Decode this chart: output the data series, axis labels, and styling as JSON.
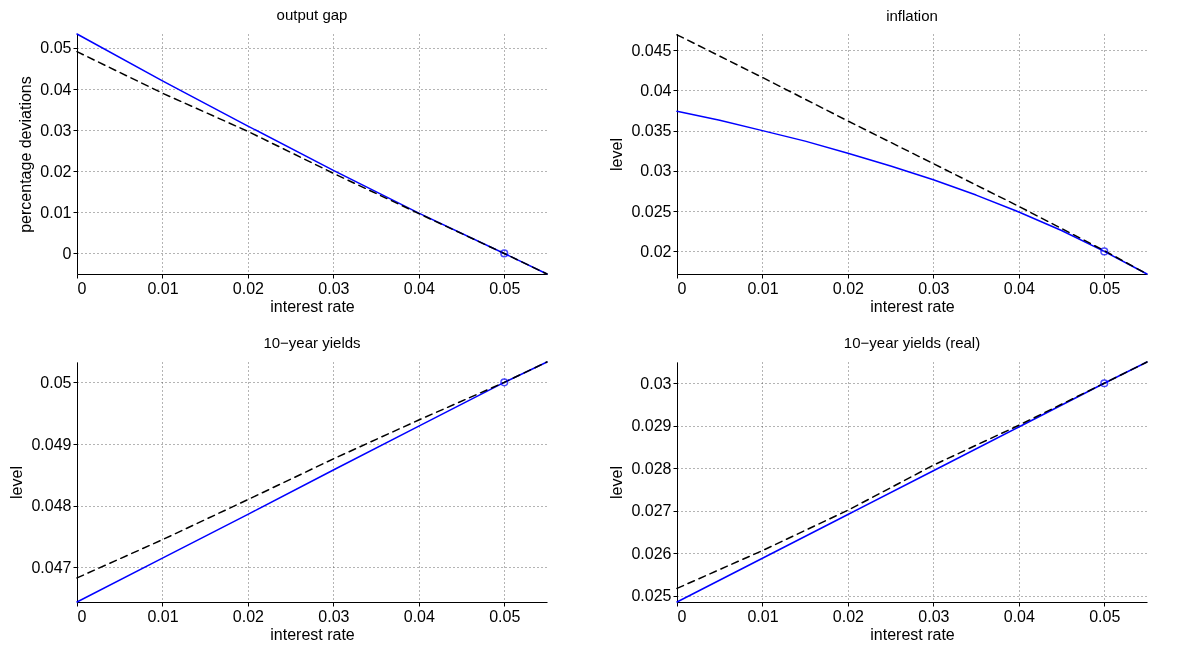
{
  "chart_data": [
    {
      "type": "line",
      "title": "output gap",
      "xlabel": "interest rate",
      "ylabel": "percentage deviations",
      "xlim": [
        0,
        0.055
      ],
      "xticks": [
        0,
        0.01,
        0.02,
        0.03,
        0.04,
        0.05
      ],
      "ylim": [
        -0.005,
        0.0534
      ],
      "yticks": [
        0,
        0.01,
        0.02,
        0.03,
        0.04,
        0.05
      ],
      "grid": true,
      "x": [
        0,
        0.01,
        0.02,
        0.03,
        0.04,
        0.05,
        0.055
      ],
      "series": [
        {
          "color": "#0000ff",
          "line_style": "solid",
          "values": [
            0.0534,
            0.042,
            0.031,
            0.0202,
            0.0098,
            0,
            -0.005
          ]
        },
        {
          "color": "#000000",
          "line_style": "dashed",
          "values": [
            0.0491,
            0.039,
            0.0297,
            0.0195,
            0.0097,
            0,
            -0.005
          ]
        },
        {
          "type": "scatter",
          "marker": "circle",
          "color": "#0000ff",
          "x": [
            0.05
          ],
          "values": [
            0
          ]
        }
      ]
    },
    {
      "type": "line",
      "title": "inflation",
      "xlabel": "interest rate",
      "ylabel": "level",
      "xlim": [
        0,
        0.055
      ],
      "xticks": [
        0,
        0.01,
        0.02,
        0.03,
        0.04,
        0.05
      ],
      "ylim": [
        0.0172,
        0.047
      ],
      "yticks": [
        0.02,
        0.025,
        0.03,
        0.035,
        0.04,
        0.045
      ],
      "grid": true,
      "x": [
        0,
        0.01,
        0.02,
        0.03,
        0.04,
        0.05,
        0.055
      ],
      "series": [
        {
          "color": "#0000ff",
          "line_style": "solid",
          "x": [
            0,
            0.005,
            0.01,
            0.015,
            0.02,
            0.025,
            0.03,
            0.035,
            0.04,
            0.045,
            0.05,
            0.055
          ],
          "values": [
            0.0374,
            0.0363,
            0.035,
            0.0337,
            0.0322,
            0.0306,
            0.0289,
            0.027,
            0.0249,
            0.0226,
            0.02,
            0.0172
          ]
        },
        {
          "color": "#000000",
          "line_style": "dashed",
          "values": [
            0.0469,
            0.0416,
            0.0362,
            0.0309,
            0.0256,
            0.0201,
            0.0172
          ]
        },
        {
          "type": "scatter",
          "marker": "circle",
          "color": "#0000ff",
          "x": [
            0.05
          ],
          "values": [
            0.02
          ]
        }
      ]
    },
    {
      "type": "line",
      "title": "10−year yields",
      "xlabel": "interest rate",
      "ylabel": "level",
      "xlim": [
        0,
        0.055
      ],
      "xticks": [
        0,
        0.01,
        0.02,
        0.03,
        0.04,
        0.05
      ],
      "ylim": [
        0.04644,
        0.05033
      ],
      "yticks": [
        0.047,
        0.048,
        0.049,
        0.05
      ],
      "grid": true,
      "x": [
        0,
        0.01,
        0.02,
        0.03,
        0.04,
        0.05,
        0.055
      ],
      "series": [
        {
          "color": "#0000ff",
          "line_style": "solid",
          "values": [
            0.04644,
            0.04715,
            0.04786,
            0.04858,
            0.04929,
            0.05,
            0.05033
          ]
        },
        {
          "color": "#000000",
          "line_style": "dashed",
          "values": [
            0.04683,
            0.04745,
            0.0481,
            0.04876,
            0.04939,
            0.05,
            0.05033
          ]
        },
        {
          "type": "scatter",
          "marker": "circle",
          "color": "#0000ff",
          "x": [
            0.05
          ],
          "values": [
            0.05
          ]
        }
      ]
    },
    {
      "type": "line",
      "title": "10−year yields (real)",
      "xlabel": "interest rate",
      "ylabel": "level",
      "xlim": [
        0,
        0.055
      ],
      "xticks": [
        0,
        0.01,
        0.02,
        0.03,
        0.04,
        0.05
      ],
      "ylim": [
        0.02485,
        0.0305
      ],
      "yticks": [
        0.025,
        0.026,
        0.027,
        0.028,
        0.029,
        0.03
      ],
      "grid": true,
      "x": [
        0,
        0.01,
        0.02,
        0.03,
        0.04,
        0.05,
        0.055
      ],
      "series": [
        {
          "color": "#0000ff",
          "line_style": "solid",
          "values": [
            0.02485,
            0.02588,
            0.02691,
            0.02794,
            0.02897,
            0.03,
            0.0305
          ]
        },
        {
          "color": "#000000",
          "line_style": "dashed",
          "values": [
            0.02517,
            0.02606,
            0.02701,
            0.02807,
            0.02901,
            0.03,
            0.0305
          ]
        },
        {
          "type": "scatter",
          "marker": "circle",
          "color": "#0000ff",
          "x": [
            0.05
          ],
          "values": [
            0.03
          ]
        }
      ]
    }
  ]
}
